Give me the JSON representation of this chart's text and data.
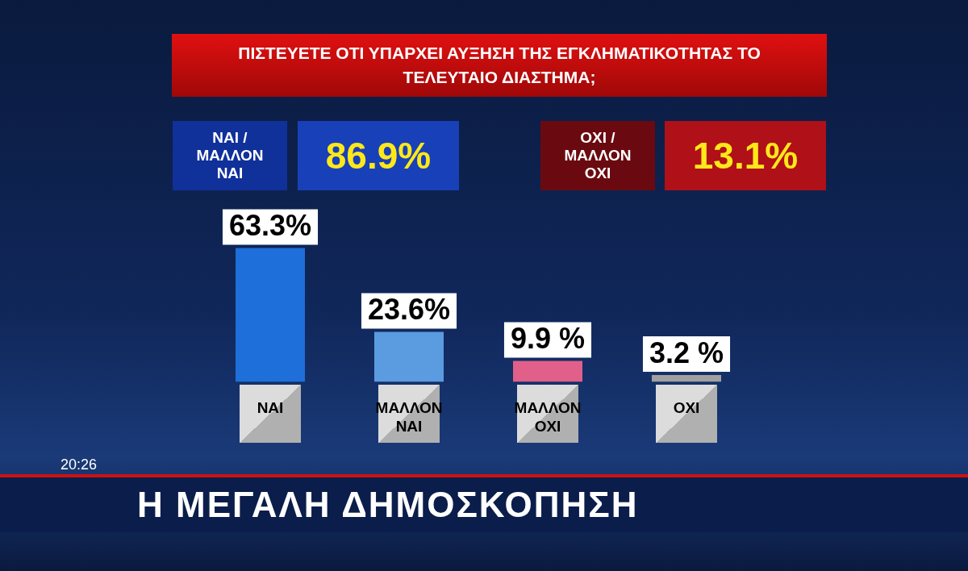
{
  "chart_data": {
    "type": "bar",
    "title": "ΠΙΣΤΕΥΕΤΕ ΟΤΙ ΥΠΑΡΧΕΙ ΑΥΞΗΣΗ ΤΗΣ ΕΓΚΛΗΜΑΤΙΚΟΤΗΤΑΣ ΤΟ ΤΕΛΕΥΤΑΙΟ ΔΙΑΣΤΗΜΑ;",
    "categories": [
      "ΝΑΙ",
      "ΜΑΛΛΟΝ ΝΑΙ",
      "ΜΑΛΛΟΝ ΟΧΙ",
      "ΟΧΙ"
    ],
    "values": [
      63.3,
      23.6,
      9.9,
      3.2
    ],
    "value_labels": [
      "63.3%",
      "23.6%",
      "9.9 %",
      "3.2 %"
    ],
    "colors": [
      "#1e6fd9",
      "#5b9be0",
      "#e0608a",
      "#a0a0a0"
    ],
    "annotations": [
      "ΝΑΙ / ΜΑΛΛΟΝ ΝΑΙ",
      "86.9%",
      "ΟΧΙ / ΜΑΛΛΟΝ ΟΧΙ",
      "13.1%",
      "20:26",
      "Η ΜΕΓΑΛΗ ΔΗΜΟΣΚΟΠΗΣΗ"
    ],
    "grid": false,
    "legend": false,
    "tick_labels": "x"
  }
}
